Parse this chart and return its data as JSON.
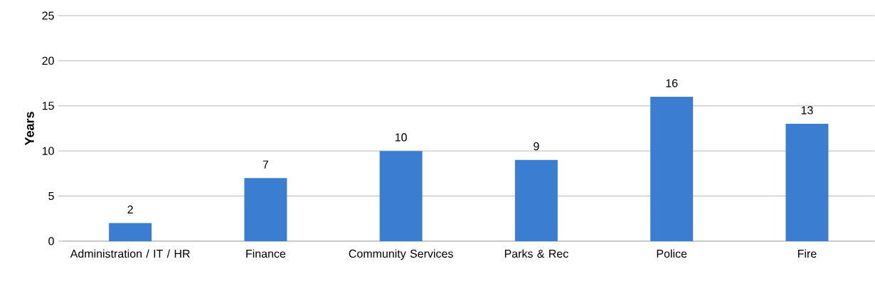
{
  "chart_data": {
    "type": "bar",
    "ylabel": "Years",
    "categories": [
      "Administration / IT / HR",
      "Finance",
      "Community Services",
      "Parks & Rec",
      "Police",
      "Fire"
    ],
    "values": [
      2,
      7,
      10,
      9,
      16,
      13
    ],
    "color": "#3b7dd0",
    "ylim": [
      0,
      25
    ],
    "yticks": [
      0,
      5,
      10,
      15,
      20,
      25
    ],
    "grid": "y",
    "data_labels": true
  }
}
